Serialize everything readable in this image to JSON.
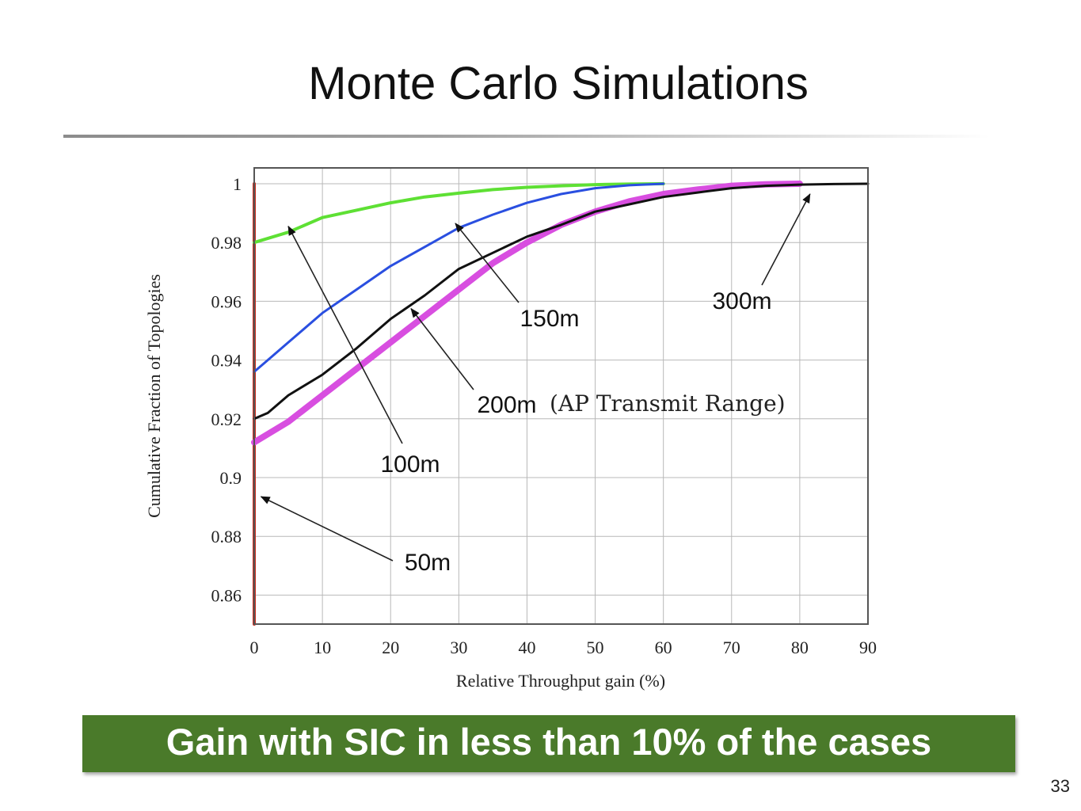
{
  "slide": {
    "title": "Monte Carlo Simulations",
    "banner": "Gain with SIC in less than 10% of the cases",
    "page_number": "33",
    "banner_color": "#4a7a2a"
  },
  "chart_data": {
    "type": "line",
    "xlabel": "Relative Throughput gain (%)",
    "ylabel": "Cumulative Fraction of Topologies",
    "xlim": [
      0,
      90
    ],
    "ylim": [
      0.85,
      1.005
    ],
    "xticks": [
      0,
      10,
      20,
      30,
      40,
      50,
      60,
      70,
      80,
      90
    ],
    "yticks": [
      {
        "v": 0.86,
        "label": "0.86"
      },
      {
        "v": 0.88,
        "label": "0.88"
      },
      {
        "v": 0.9,
        "label": "0.9"
      },
      {
        "v": 0.92,
        "label": "0.92"
      },
      {
        "v": 0.94,
        "label": "0.94"
      },
      {
        "v": 0.96,
        "label": "0.96"
      },
      {
        "v": 0.98,
        "label": "0.98"
      },
      {
        "v": 1,
        "label": "1"
      }
    ],
    "grid": true,
    "series": [
      {
        "name": "50m",
        "color": "#cc2b1e",
        "width": 4,
        "x": [
          0,
          0
        ],
        "y": [
          0.85,
          1.0
        ]
      },
      {
        "name": "100m",
        "color": "#5ee034",
        "width": 4,
        "x": [
          0,
          5,
          10,
          15,
          20,
          25,
          30,
          35,
          40,
          45,
          50,
          55,
          60
        ],
        "y": [
          0.98,
          0.9835,
          0.9885,
          0.991,
          0.9935,
          0.9955,
          0.9968,
          0.998,
          0.9988,
          0.9993,
          0.9997,
          0.9999,
          1.0
        ]
      },
      {
        "name": "150m",
        "color": "#2a4fe0",
        "width": 3,
        "x": [
          0,
          2,
          5,
          10,
          15,
          20,
          25,
          30,
          35,
          40,
          45,
          50,
          55,
          60
        ],
        "y": [
          0.936,
          0.94,
          0.946,
          0.956,
          0.964,
          0.972,
          0.9785,
          0.985,
          0.9895,
          0.9935,
          0.9965,
          0.9985,
          0.9995,
          1.0
        ]
      },
      {
        "name": "200m",
        "color": "#d84ee0",
        "width": 8,
        "x": [
          0,
          5,
          10,
          15,
          20,
          25,
          30,
          35,
          40,
          45,
          50,
          55,
          60,
          65,
          70,
          75,
          80
        ],
        "y": [
          0.912,
          0.919,
          0.928,
          0.937,
          0.946,
          0.955,
          0.964,
          0.973,
          0.98,
          0.986,
          0.9905,
          0.994,
          0.9965,
          0.998,
          0.9993,
          0.9998,
          1.0
        ]
      },
      {
        "name": "300m",
        "color": "#111111",
        "width": 3,
        "x": [
          0,
          2,
          5,
          10,
          15,
          20,
          25,
          30,
          35,
          40,
          45,
          50,
          55,
          60,
          65,
          70,
          75,
          80,
          85,
          90
        ],
        "y": [
          0.92,
          0.922,
          0.928,
          0.935,
          0.944,
          0.954,
          0.962,
          0.971,
          0.9765,
          0.982,
          0.986,
          0.9905,
          0.993,
          0.9955,
          0.997,
          0.9985,
          0.9993,
          0.9997,
          0.9999,
          1.0
        ]
      }
    ],
    "annotations": [
      {
        "text": "50m",
        "arrow_to": [
          1,
          0.8935
        ]
      },
      {
        "text": "100m",
        "arrow_to": [
          5,
          0.9855
        ]
      },
      {
        "text": "150m",
        "arrow_to": [
          29.5,
          0.9865
        ]
      },
      {
        "text": "200m",
        "arrow_to": [
          23,
          0.9575
        ]
      },
      {
        "text": "300m",
        "arrow_to": [
          81.5,
          0.9965
        ]
      }
    ],
    "note": "(AP Transmit Range)"
  }
}
